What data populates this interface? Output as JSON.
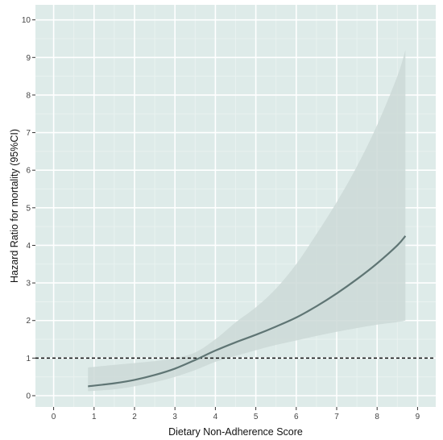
{
  "chart_data": {
    "type": "line",
    "title": "",
    "xlabel": "Dietary Non-Adherence Score",
    "ylabel": "Hazard Ratio for mortality (95%CI)",
    "xlim": [
      -0.45,
      9.45
    ],
    "ylim": [
      -0.3,
      10.4
    ],
    "x_ticks": [
      0,
      1,
      2,
      3,
      4,
      5,
      6,
      7,
      8,
      9
    ],
    "y_ticks": [
      0,
      1,
      2,
      3,
      4,
      5,
      6,
      7,
      8,
      9,
      10
    ],
    "grid": true,
    "legend": "none",
    "reference_line": {
      "y": 1,
      "style": "dashed"
    },
    "series": [
      {
        "x": [
          0.85,
          1.5,
          2.0,
          2.5,
          3.0,
          3.5,
          4.0,
          4.5,
          5.0,
          5.5,
          6.0,
          6.5,
          7.0,
          7.5,
          8.0,
          8.5,
          8.7
        ],
        "values": [
          0.25,
          0.33,
          0.42,
          0.55,
          0.72,
          0.95,
          1.2,
          1.42,
          1.62,
          1.84,
          2.08,
          2.38,
          2.72,
          3.1,
          3.52,
          4.0,
          4.25
        ],
        "ci_lower": [
          0.12,
          0.17,
          0.25,
          0.36,
          0.5,
          0.68,
          0.9,
          1.06,
          1.21,
          1.35,
          1.47,
          1.59,
          1.7,
          1.8,
          1.89,
          1.96,
          2.0
        ],
        "ci_upper": [
          0.75,
          0.82,
          0.87,
          0.92,
          1.0,
          1.15,
          1.5,
          1.95,
          2.35,
          2.85,
          3.5,
          4.3,
          5.15,
          6.1,
          7.2,
          8.5,
          9.2
        ]
      }
    ],
    "colors": {
      "panel_background": "#deebe9",
      "grid_major": "#ffffff",
      "grid_minor": "#ebf3f1",
      "ci_band": "#cdd9d7",
      "line": "#5f7574",
      "reference_line": "#111111",
      "tick_text": "#444444"
    }
  }
}
